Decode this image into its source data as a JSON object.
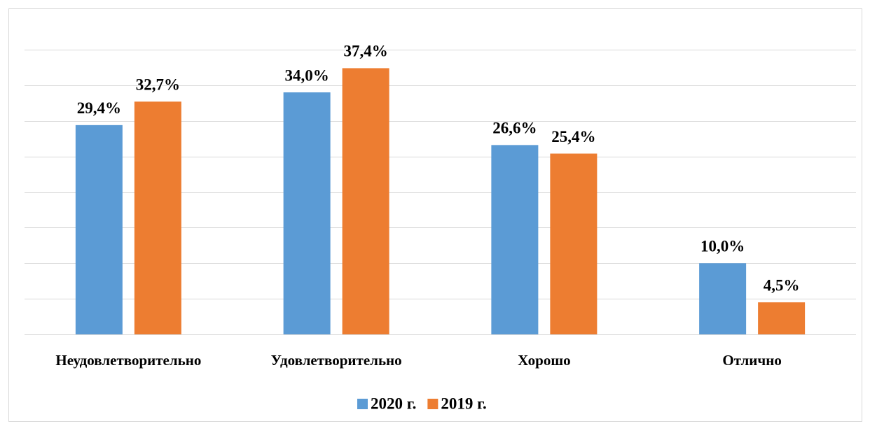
{
  "chart_data": {
    "type": "bar",
    "categories": [
      "Неудовлетворительно",
      "Удовлетворительно",
      "Хорошо",
      "Отлично"
    ],
    "series": [
      {
        "name": "2020 г.",
        "color": "#5b9bd5",
        "values": [
          29.4,
          34.0,
          26.6,
          10.0
        ],
        "value_labels": [
          "29,4%",
          "34,0%",
          "26,6%",
          "10,0%"
        ]
      },
      {
        "name": "2019 г.",
        "color": "#ed7d31",
        "values": [
          32.7,
          37.4,
          25.4,
          4.5
        ],
        "value_labels": [
          "32,7%",
          "37,4%",
          "25,4%",
          "4,5%"
        ]
      }
    ],
    "ylim": [
      0,
      40
    ],
    "yticks": [
      0,
      5,
      10,
      15,
      20,
      25,
      30,
      35,
      40
    ],
    "grid": true,
    "legend": "bottom"
  }
}
